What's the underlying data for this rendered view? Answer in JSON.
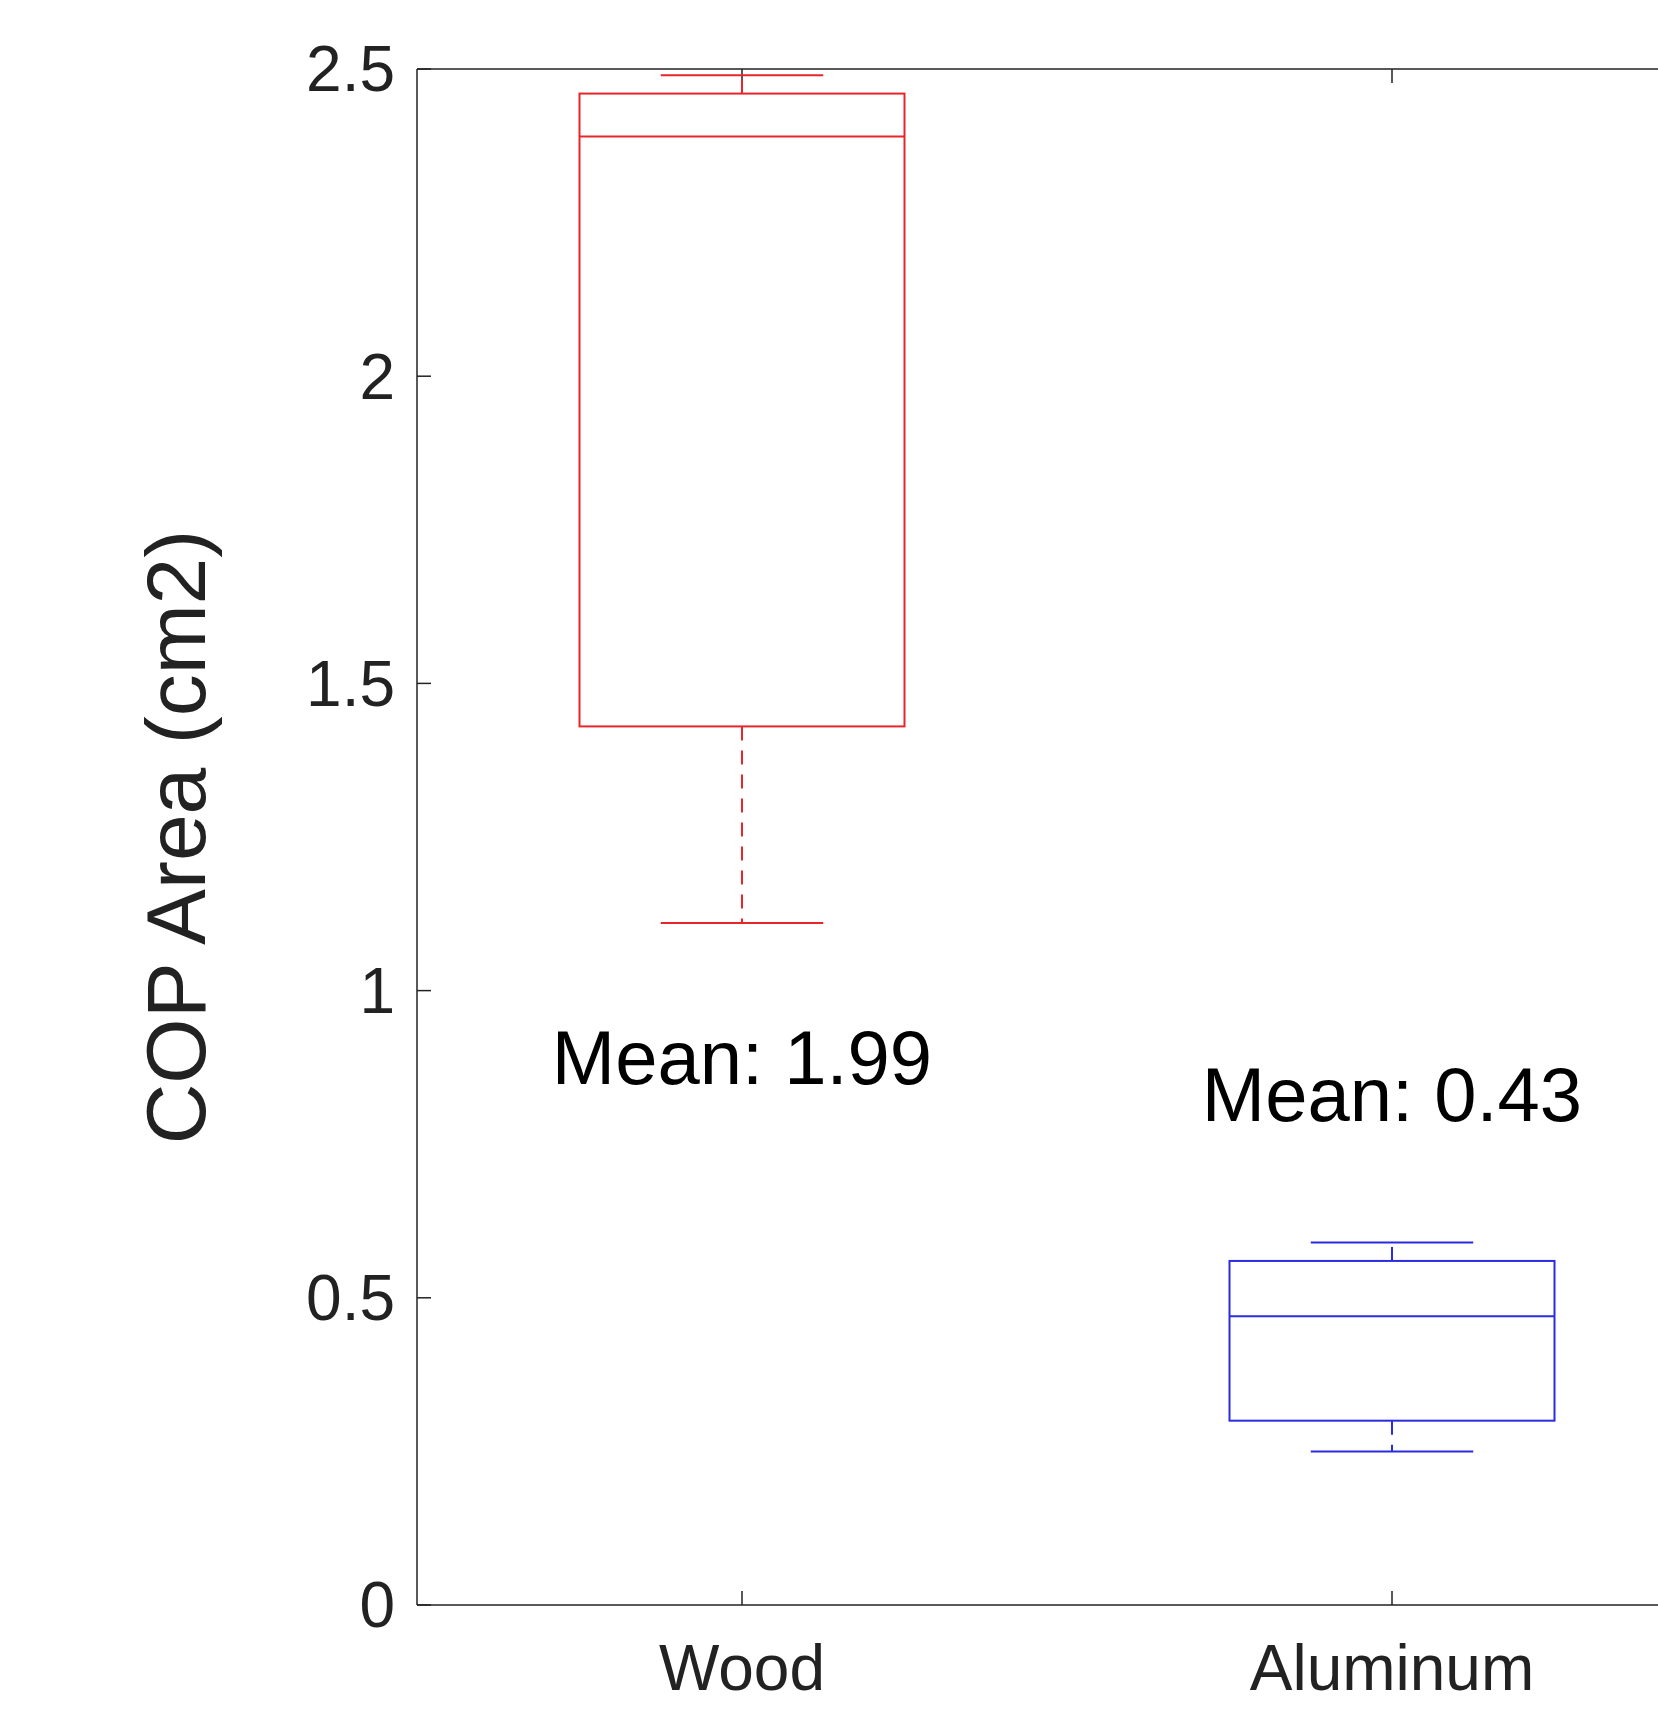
{
  "chart_data": {
    "type": "box",
    "ylabel": "COP Area (cm2)",
    "categories": [
      "Wood",
      "Aluminum"
    ],
    "boxes": [
      {
        "low": 1.11,
        "q1": 1.43,
        "median": 2.39,
        "q3": 2.46,
        "high": 2.49
      },
      {
        "low": 0.25,
        "q1": 0.3,
        "median": 0.47,
        "q3": 0.56,
        "high": 0.59
      }
    ],
    "colors": [
      "#e8262a",
      "#2b2be0"
    ],
    "line_style": "dashed",
    "ylim": [
      0,
      2.5
    ],
    "yticks": [
      0,
      0.5,
      1,
      1.5,
      2,
      2.5
    ],
    "annotations": [
      "Mean: 1.99",
      "Mean: 0.43"
    ],
    "grid": false
  }
}
